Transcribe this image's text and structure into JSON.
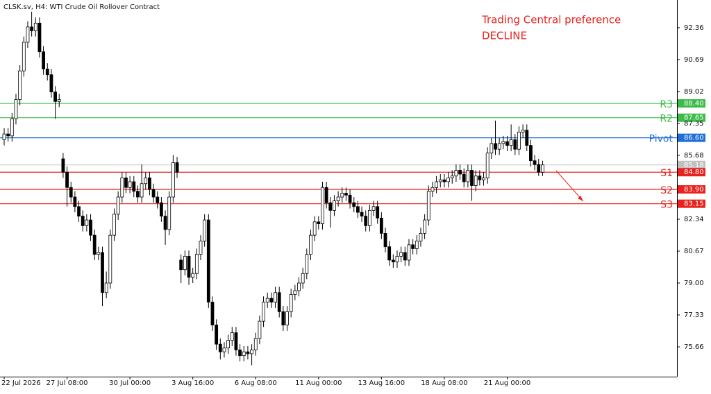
{
  "chart_data": {
    "type": "candlestick",
    "title": "CLSK.sv, H4:  WTI Crude Oil Rollover Contract",
    "annotations": [
      "Trading Central preference",
      "DECLINE"
    ],
    "categories": [
      "22 Jul 2026",
      null,
      null,
      null,
      null,
      null,
      null,
      null,
      null,
      null,
      null,
      null,
      null,
      null,
      null,
      null,
      "27 Jul 08:00",
      null,
      null,
      null,
      null,
      null,
      null,
      null,
      null,
      null,
      null,
      null,
      null,
      null,
      null,
      null,
      "30 Jul 00:00",
      null,
      null,
      null,
      null,
      null,
      null,
      null,
      null,
      null,
      null,
      null,
      null,
      null,
      null,
      null,
      "3 Aug 16:00",
      null,
      null,
      null,
      null,
      null,
      null,
      null,
      null,
      null,
      null,
      null,
      null,
      null,
      null,
      null,
      "6 Aug 08:00",
      null,
      null,
      null,
      null,
      null,
      null,
      null,
      null,
      null,
      null,
      null,
      null,
      null,
      null,
      null,
      "11 Aug 00:00",
      null,
      null,
      null,
      null,
      null,
      null,
      null,
      null,
      null,
      null,
      null,
      null,
      null,
      null,
      null,
      "13 Aug 16:00",
      null,
      null,
      null,
      null,
      null,
      null,
      null,
      null,
      null,
      null,
      null,
      null,
      null,
      null,
      null,
      "18 Aug 08:00",
      null,
      null,
      null,
      null,
      null,
      null,
      null,
      null,
      null,
      null,
      null,
      null,
      null,
      null,
      null,
      "21 Aug 00:00",
      null,
      null,
      null,
      null,
      null,
      null,
      null,
      null,
      null
    ],
    "open": [
      86.5,
      86.8,
      86.7,
      87.6,
      88.6,
      90.1,
      91.6,
      92.4,
      92.2,
      92.6,
      91.1,
      90.2,
      89.9,
      89.0,
      88.5,
      85.5,
      84.8,
      84.0,
      83.5,
      83.0,
      82.5,
      82.0,
      82.3,
      81.5,
      80.5,
      80.6,
      78.5,
      79.0,
      81.5,
      82.6,
      83.5,
      84.5,
      84.0,
      84.3,
      83.8,
      83.5,
      84.2,
      84.5,
      83.9,
      83.5,
      83.2,
      82.5,
      81.8,
      83.5,
      85.3,
      80.2,
      79.7,
      80.4,
      79.3,
      79.5,
      80.5,
      81.2,
      82.3,
      78.0,
      76.8,
      75.8,
      75.4,
      75.6,
      76.0,
      76.4,
      75.5,
      75.2,
      75.4,
      75.3,
      75.5,
      76.1,
      77.0,
      78.0,
      78.2,
      78.0,
      78.5,
      77.5,
      76.8,
      77.5,
      78.4,
      78.6,
      79.0,
      79.5,
      80.5,
      81.5,
      82.2,
      82.1,
      84.0,
      83.2,
      82.8,
      83.3,
      83.5,
      83.7,
      83.6,
      83.2,
      83.0,
      82.7,
      82.5,
      82.0,
      82.8,
      83.0,
      82.4,
      81.6,
      80.9,
      80.2,
      80.1,
      80.4,
      80.6,
      80.2,
      81.0,
      80.8,
      81.2,
      81.6,
      82.3,
      83.8,
      84.0,
      84.3,
      84.4,
      84.3,
      84.5,
      84.6,
      84.9,
      84.7,
      84.3,
      84.9,
      84.1,
      84.6,
      84.4,
      84.5,
      85.8,
      86.3,
      86.0,
      86.3,
      86.4,
      86.2,
      86.5,
      86.0,
      86.9,
      87.0,
      86.2,
      85.4,
      85.2,
      84.8
    ],
    "high": [
      87.1,
      87.1,
      87.9,
      88.9,
      90.4,
      91.9,
      92.7,
      93.2,
      92.9,
      92.9,
      91.4,
      90.5,
      90.2,
      89.3,
      88.9,
      85.8,
      85.1,
      84.3,
      83.8,
      83.3,
      82.8,
      82.6,
      82.6,
      81.8,
      80.9,
      80.9,
      79.6,
      81.8,
      82.9,
      83.8,
      84.8,
      84.8,
      84.6,
      84.6,
      84.1,
      85.2,
      84.8,
      84.8,
      84.2,
      83.8,
      83.5,
      82.8,
      83.8,
      85.7,
      85.6,
      80.5,
      80.7,
      80.7,
      79.8,
      80.8,
      81.5,
      82.6,
      82.6,
      78.3,
      77.1,
      76.1,
      75.9,
      76.3,
      76.7,
      76.7,
      75.8,
      75.7,
      75.7,
      75.8,
      76.4,
      77.3,
      78.3,
      78.5,
      78.5,
      78.8,
      78.8,
      77.8,
      77.8,
      78.7,
      78.9,
      79.3,
      79.8,
      80.8,
      81.8,
      82.5,
      82.5,
      84.3,
      84.3,
      83.5,
      83.6,
      83.8,
      84.0,
      84.0,
      83.9,
      83.5,
      83.3,
      83.0,
      82.8,
      83.1,
      83.3,
      83.3,
      82.7,
      81.9,
      81.2,
      80.5,
      80.7,
      80.9,
      80.9,
      81.3,
      81.3,
      81.5,
      81.9,
      82.6,
      84.1,
      84.3,
      84.6,
      84.7,
      84.7,
      84.8,
      84.9,
      85.2,
      85.2,
      85.0,
      85.2,
      85.2,
      84.9,
      84.9,
      84.8,
      86.1,
      86.6,
      87.5,
      86.6,
      86.7,
      86.7,
      87.3,
      86.8,
      87.2,
      87.3,
      87.3,
      86.5,
      85.7,
      85.5,
      85.4
    ],
    "low": [
      86.2,
      86.4,
      86.4,
      87.3,
      88.3,
      89.8,
      91.3,
      91.9,
      91.9,
      90.8,
      89.9,
      89.6,
      88.7,
      87.6,
      88.2,
      84.5,
      83.0,
      83.2,
      82.7,
      82.2,
      81.7,
      81.7,
      81.2,
      80.2,
      80.2,
      77.8,
      78.2,
      78.7,
      81.2,
      82.3,
      83.2,
      83.7,
      83.7,
      83.5,
      83.2,
      83.2,
      83.9,
      83.6,
      83.2,
      82.9,
      82.2,
      81.0,
      81.5,
      83.2,
      84.5,
      79.0,
      79.4,
      78.9,
      79.0,
      79.2,
      80.2,
      80.9,
      77.7,
      76.5,
      75.5,
      75.0,
      75.1,
      75.3,
      75.7,
      75.2,
      74.9,
      74.9,
      75.0,
      74.7,
      75.2,
      75.8,
      76.7,
      77.7,
      77.7,
      77.7,
      77.2,
      76.5,
      76.5,
      77.2,
      78.1,
      78.3,
      78.7,
      79.2,
      80.2,
      81.2,
      81.8,
      81.8,
      82.9,
      81.9,
      82.5,
      83.0,
      83.2,
      83.3,
      82.9,
      82.7,
      82.4,
      82.2,
      81.7,
      81.7,
      82.5,
      82.1,
      81.3,
      80.6,
      79.9,
      79.8,
      79.8,
      80.1,
      79.9,
      79.9,
      80.5,
      80.5,
      80.9,
      81.3,
      82.0,
      83.5,
      83.7,
      84.0,
      84.0,
      84.0,
      84.2,
      84.3,
      84.4,
      84.0,
      84.0,
      83.3,
      83.8,
      84.1,
      84.1,
      84.2,
      85.5,
      85.7,
      85.7,
      86.0,
      85.9,
      85.9,
      85.7,
      85.7,
      86.6,
      85.9,
      85.1,
      84.9,
      84.6,
      84.6
    ],
    "close": [
      86.8,
      86.7,
      87.6,
      88.6,
      90.1,
      91.6,
      92.4,
      92.2,
      92.6,
      91.1,
      90.2,
      89.9,
      89.0,
      88.5,
      88.6,
      84.8,
      84.0,
      83.5,
      83.0,
      82.5,
      82.0,
      82.3,
      81.5,
      80.5,
      80.6,
      78.5,
      79.0,
      81.5,
      82.6,
      83.5,
      84.5,
      84.0,
      84.3,
      83.8,
      83.5,
      84.2,
      84.5,
      83.9,
      83.5,
      83.2,
      82.5,
      81.8,
      83.5,
      85.3,
      84.8,
      79.7,
      80.4,
      79.3,
      79.5,
      80.5,
      81.2,
      82.3,
      78.0,
      76.8,
      75.8,
      75.4,
      75.6,
      76.0,
      76.4,
      75.5,
      75.2,
      75.4,
      75.3,
      75.5,
      76.1,
      77.0,
      78.0,
      78.2,
      78.0,
      78.5,
      77.5,
      76.8,
      77.5,
      78.4,
      78.6,
      79.0,
      79.5,
      80.5,
      81.5,
      82.2,
      82.1,
      84.0,
      83.2,
      82.8,
      83.3,
      83.5,
      83.7,
      83.6,
      83.2,
      83.0,
      82.7,
      82.5,
      82.0,
      82.8,
      83.0,
      82.4,
      81.6,
      80.9,
      80.2,
      80.1,
      80.4,
      80.6,
      80.2,
      81.0,
      80.8,
      81.2,
      81.6,
      82.3,
      83.8,
      84.0,
      84.3,
      84.4,
      84.3,
      84.5,
      84.6,
      84.9,
      84.7,
      84.3,
      84.9,
      84.1,
      84.6,
      84.4,
      84.5,
      85.8,
      86.3,
      86.0,
      86.3,
      86.4,
      86.2,
      86.5,
      86.0,
      86.9,
      87.0,
      86.2,
      85.4,
      85.2,
      84.8,
      85.18
    ],
    "ylim": [
      74.1,
      93.81
    ],
    "yticks": [
      92.36,
      90.69,
      89.02,
      87.35,
      85.68,
      82.34,
      80.67,
      {
        "value": 79,
        "label": "79.00"
      },
      77.33,
      75.66
    ],
    "last_price": 85.18,
    "levels": [
      {
        "name": "R3",
        "value": 88.4,
        "label": "88.40",
        "color": "#3dbb4a"
      },
      {
        "name": "R2",
        "value": 87.65,
        "label": "87.65",
        "color": "#3dbb4a"
      },
      {
        "name": "Pivot",
        "value": 86.6,
        "label": "86.60",
        "color": "#1e6fd8"
      },
      {
        "name": "S1",
        "value": 84.8,
        "label": "84.80",
        "color": "#e8231f"
      },
      {
        "name": "S2",
        "value": 83.9,
        "label": "83.90",
        "color": "#e8231f"
      },
      {
        "name": "S3",
        "value": 83.15,
        "label": "83.15",
        "color": "#e8231f"
      }
    ]
  }
}
